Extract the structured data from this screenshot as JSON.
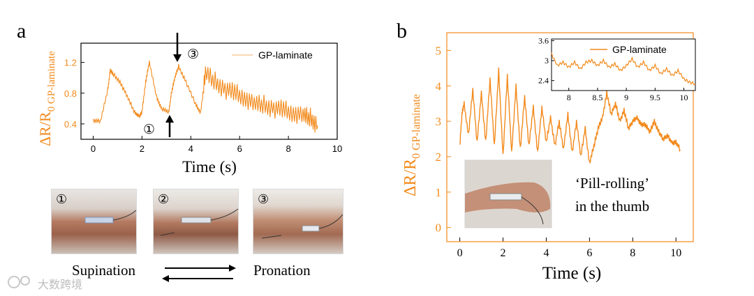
{
  "panels": {
    "a": {
      "letter": "a",
      "ylabel_main": "ΔR/R",
      "ylabel_sub": "0 GP-laminate",
      "xlabel": "Time (s)",
      "marker_1": "①",
      "marker_3": "③",
      "legend": "GP-laminate",
      "photo_labels": [
        "①",
        "②",
        "③"
      ],
      "motion_left": "Supination",
      "motion_right": "Pronation"
    },
    "b": {
      "letter": "b",
      "ylabel_main": "ΔR/R",
      "ylabel_sub": "0 GP-laminate",
      "xlabel": "Time (s)",
      "legend": "GP-laminate",
      "photo_caption_line1": "‘Pill-rolling’",
      "photo_caption_line2": "in the thumb"
    }
  },
  "watermark": "大数跨境",
  "colors": {
    "series": "#f28a1c",
    "axis": "#000000",
    "label_orange": "#f28a1c"
  },
  "chart_data": [
    {
      "id": "a",
      "type": "line",
      "title": "",
      "xlabel": "Time (s)",
      "ylabel": "ΔR/R0 GP-laminate",
      "xlim": [
        -0.5,
        10
      ],
      "ylim": [
        0.2,
        1.45
      ],
      "xticks": [
        0,
        2,
        4,
        6,
        8,
        10
      ],
      "yticks": [
        0.4,
        0.8,
        1.2
      ],
      "series": [
        {
          "name": "GP-laminate",
          "x": [
            0,
            0.3,
            0.6,
            0.7,
            0.8,
            1.1,
            1.4,
            1.7,
            1.9,
            2.0,
            2.15,
            2.3,
            2.6,
            2.8,
            3.1,
            3.2,
            3.35,
            3.5,
            3.8,
            4.2,
            4.4,
            4.6,
            5.0,
            5.4,
            5.8,
            6.2,
            6.6,
            7.0,
            7.4,
            7.8,
            8.2,
            8.6,
            8.9,
            9.2
          ],
          "y": [
            0.45,
            0.43,
            0.85,
            1.1,
            1.05,
            0.95,
            0.75,
            0.55,
            0.5,
            0.55,
            0.95,
            1.2,
            0.75,
            0.6,
            0.55,
            0.8,
            1.0,
            1.15,
            0.95,
            0.65,
            0.55,
            1.05,
            0.95,
            0.85,
            0.8,
            0.75,
            0.65,
            0.65,
            0.6,
            0.58,
            0.55,
            0.5,
            0.48,
            0.38
          ]
        }
      ]
    },
    {
      "id": "b",
      "type": "line",
      "title": "",
      "xlabel": "Time (s)",
      "ylabel": "ΔR/R0 GP-laminate",
      "xlim": [
        -0.6,
        10.8
      ],
      "ylim": [
        -0.4,
        5.5
      ],
      "xticks": [
        0,
        2,
        4,
        6,
        8,
        10
      ],
      "yticks": [
        0,
        1,
        2,
        3,
        4,
        5
      ],
      "series": [
        {
          "name": "GP-laminate",
          "x": [
            0,
            0.1,
            0.2,
            0.4,
            0.6,
            0.8,
            1.0,
            1.2,
            1.4,
            1.6,
            1.8,
            2.0,
            2.2,
            2.4,
            2.6,
            2.8,
            3.0,
            3.2,
            3.4,
            3.6,
            3.8,
            4.0,
            4.2,
            4.4,
            4.6,
            4.8,
            5.0,
            5.2,
            5.4,
            5.6,
            5.8,
            6.0,
            6.2,
            6.4,
            6.6,
            6.8,
            7.0,
            7.2,
            7.4,
            7.6,
            7.8,
            8.0,
            8.2,
            8.4,
            8.6,
            8.8,
            9.0,
            9.2,
            9.4,
            9.6,
            9.8,
            10.0,
            10.2
          ],
          "y": [
            2.3,
            3.2,
            3.5,
            2.6,
            3.9,
            2.4,
            3.8,
            2.4,
            4.2,
            2.3,
            4.45,
            2.0,
            4.3,
            2.1,
            4.0,
            2.2,
            3.7,
            2.3,
            3.4,
            2.1,
            3.4,
            2.4,
            3.1,
            2.3,
            3.0,
            2.2,
            3.2,
            2.1,
            3.0,
            2.0,
            2.8,
            1.8,
            2.3,
            2.8,
            3.1,
            3.8,
            3.2,
            3.5,
            3.0,
            3.3,
            2.8,
            3.0,
            3.1,
            2.9,
            2.9,
            2.7,
            3.0,
            2.7,
            2.5,
            2.6,
            2.4,
            2.4,
            2.2
          ]
        }
      ],
      "inset": {
        "xlim": [
          7.7,
          10.2
        ],
        "ylim": [
          2.1,
          3.65
        ],
        "xticks": [
          8,
          8.5,
          9,
          9.5,
          10
        ],
        "yticks": [
          2.4,
          3,
          3.6
        ],
        "x": [
          7.7,
          7.8,
          7.9,
          8.0,
          8.1,
          8.2,
          8.3,
          8.4,
          8.5,
          8.6,
          8.7,
          8.8,
          8.9,
          9.0,
          9.1,
          9.2,
          9.3,
          9.4,
          9.5,
          9.6,
          9.7,
          9.8,
          9.9,
          10.0,
          10.1,
          10.2
        ],
        "y": [
          3.2,
          2.85,
          2.95,
          2.8,
          2.95,
          2.75,
          2.95,
          3.0,
          2.85,
          3.0,
          2.8,
          2.9,
          2.7,
          2.85,
          3.05,
          2.8,
          2.95,
          2.7,
          2.85,
          2.6,
          2.75,
          2.55,
          2.7,
          2.45,
          2.35,
          2.3
        ]
      }
    }
  ]
}
